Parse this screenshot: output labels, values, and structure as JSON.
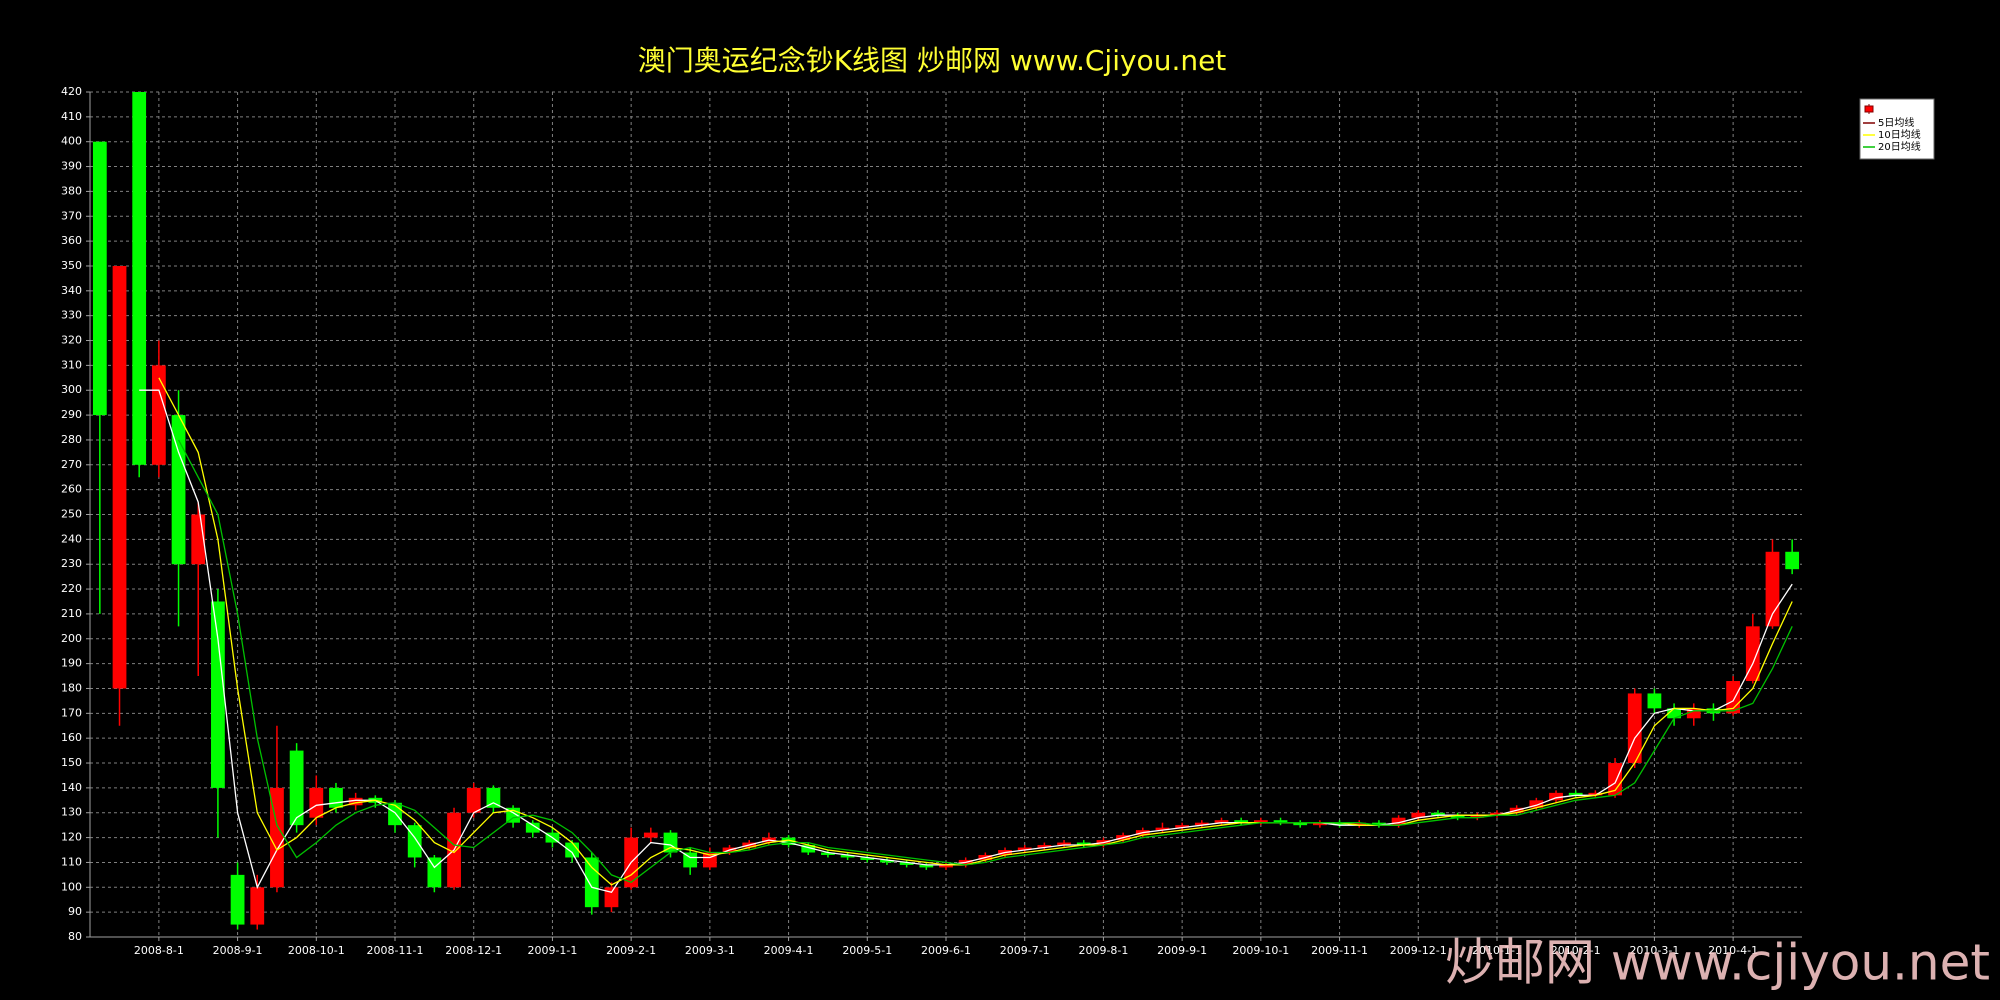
{
  "chart_data": {
    "type": "candlestick",
    "title": "澳门奥运纪念钞K线图  炒邮网 www.Cjiyou.net",
    "watermark": "炒邮网 www.cjiyou.net",
    "categories": [
      null,
      null,
      null,
      "2008-8-1",
      null,
      null,
      null,
      "2008-9-1",
      null,
      null,
      null,
      "2008-10-1",
      null,
      null,
      null,
      "2008-11-1",
      null,
      null,
      null,
      "2008-12-1",
      null,
      null,
      null,
      "2009-1-1",
      null,
      null,
      null,
      "2009-2-1",
      null,
      null,
      null,
      "2009-3-1",
      null,
      null,
      null,
      "2009-4-1",
      null,
      null,
      null,
      "2009-5-1",
      null,
      null,
      null,
      "2009-6-1",
      null,
      null,
      null,
      "2009-7-1",
      null,
      null,
      null,
      "2009-8-1",
      null,
      null,
      null,
      "2009-9-1",
      null,
      null,
      null,
      "2009-10-1",
      null,
      null,
      null,
      "2009-11-1",
      null,
      null,
      null,
      "2009-12-1",
      null,
      null,
      null,
      "2010-1-1",
      null,
      null,
      null,
      "2010-2-1",
      null,
      null,
      null,
      "2010-3-1",
      null,
      null,
      null,
      "2010-4-1",
      null,
      null,
      null
    ],
    "open": [
      400,
      180,
      420,
      270,
      290,
      230,
      215,
      105,
      85,
      100,
      155,
      128,
      140,
      133,
      136,
      134,
      125,
      112,
      100,
      130,
      140,
      132,
      126,
      122,
      118,
      112,
      92,
      100,
      120,
      122,
      114,
      108,
      114,
      116,
      118,
      120,
      117,
      114,
      113,
      112,
      111,
      110,
      109,
      108,
      109,
      111,
      113,
      115,
      116,
      117,
      118,
      117,
      119,
      121,
      123,
      124,
      125,
      126,
      127,
      126,
      127,
      126,
      125,
      126,
      125,
      126,
      125,
      128,
      130,
      129,
      128,
      129,
      130,
      132,
      135,
      138,
      137,
      137,
      150,
      178,
      172,
      168,
      172,
      170,
      183,
      205,
      235
    ],
    "high": [
      400,
      350,
      420,
      320,
      300,
      255,
      220,
      110,
      105,
      165,
      158,
      145,
      142,
      138,
      137,
      135,
      126,
      113,
      132,
      142,
      141,
      133,
      127,
      124,
      119,
      114,
      102,
      124,
      124,
      123,
      116,
      116,
      117,
      119,
      122,
      121,
      118,
      115,
      114,
      113,
      112,
      111,
      110,
      110,
      112,
      114,
      116,
      117,
      118,
      119,
      119,
      120,
      122,
      124,
      126,
      126,
      127,
      128,
      128,
      128,
      128,
      127,
      127,
      127,
      127,
      127,
      129,
      131,
      131,
      130,
      130,
      131,
      133,
      136,
      139,
      139,
      139,
      152,
      180,
      180,
      174,
      174,
      174,
      185,
      210,
      240,
      240
    ],
    "low": [
      210,
      165,
      265,
      265,
      205,
      185,
      120,
      83,
      83,
      98,
      122,
      125,
      130,
      131,
      132,
      122,
      108,
      98,
      99,
      128,
      130,
      124,
      120,
      116,
      110,
      89,
      90,
      99,
      118,
      112,
      105,
      107,
      113,
      115,
      117,
      116,
      113,
      112,
      111,
      110,
      109,
      108,
      107,
      107,
      108,
      110,
      112,
      114,
      115,
      116,
      116,
      116,
      118,
      120,
      122,
      123,
      124,
      125,
      125,
      125,
      125,
      124,
      124,
      124,
      124,
      124,
      124,
      127,
      128,
      127,
      127,
      128,
      129,
      131,
      134,
      136,
      136,
      136,
      148,
      170,
      165,
      165,
      167,
      169,
      182,
      204,
      226
    ],
    "close": [
      290,
      350,
      270,
      310,
      230,
      250,
      140,
      85,
      100,
      140,
      125,
      140,
      132,
      136,
      134,
      125,
      112,
      100,
      130,
      140,
      132,
      126,
      122,
      118,
      112,
      92,
      100,
      120,
      122,
      114,
      108,
      114,
      116,
      118,
      120,
      117,
      114,
      113,
      112,
      111,
      110,
      109,
      108,
      109,
      111,
      113,
      115,
      116,
      117,
      118,
      117,
      119,
      121,
      123,
      124,
      125,
      126,
      127,
      126,
      127,
      126,
      125,
      126,
      125,
      126,
      125,
      128,
      130,
      129,
      128,
      129,
      130,
      132,
      135,
      138,
      137,
      138,
      150,
      178,
      172,
      168,
      172,
      170,
      183,
      205,
      235,
      228
    ],
    "up_color": "#ff0000",
    "down_color": "#00ff00",
    "series": [
      {
        "name": "5日均线",
        "color": "#ffffff",
        "values": [
          null,
          null,
          300,
          300,
          275,
          255,
          200,
          130,
          100,
          115,
          128,
          133,
          134,
          135,
          135,
          130,
          120,
          108,
          115,
          130,
          134,
          130,
          125,
          120,
          114,
          100,
          98,
          110,
          118,
          117,
          112,
          112,
          115,
          117,
          119,
          118,
          116,
          114,
          113,
          112,
          111,
          110,
          109,
          109,
          110,
          112,
          114,
          115,
          116,
          117,
          117,
          118,
          120,
          122,
          123,
          124,
          125,
          126,
          126,
          126,
          126,
          126,
          126,
          125,
          125,
          125,
          126,
          128,
          129,
          129,
          129,
          129,
          131,
          133,
          136,
          137,
          137,
          142,
          160,
          170,
          172,
          171,
          171,
          175,
          190,
          210,
          222
        ]
      },
      {
        "name": "10日均线",
        "color": "#ffff00",
        "values": [
          null,
          null,
          null,
          305,
          290,
          275,
          240,
          180,
          130,
          115,
          120,
          128,
          132,
          134,
          135,
          133,
          127,
          118,
          114,
          122,
          130,
          131,
          128,
          124,
          118,
          108,
          101,
          105,
          112,
          116,
          115,
          113,
          114,
          116,
          118,
          119,
          117,
          115,
          114,
          113,
          112,
          111,
          110,
          109,
          109,
          111,
          113,
          114,
          115,
          116,
          117,
          117,
          119,
          121,
          122,
          123,
          124,
          125,
          126,
          126,
          126,
          126,
          126,
          126,
          125,
          125,
          125,
          127,
          128,
          129,
          129,
          129,
          130,
          132,
          134,
          136,
          137,
          139,
          150,
          165,
          172,
          172,
          171,
          172,
          180,
          198,
          215
        ]
      },
      {
        "name": "20日均线",
        "color": "#00c000",
        "values": [
          null,
          null,
          null,
          null,
          280,
          265,
          250,
          210,
          160,
          125,
          112,
          118,
          125,
          130,
          133,
          134,
          131,
          124,
          117,
          116,
          122,
          128,
          129,
          127,
          122,
          114,
          105,
          102,
          108,
          114,
          116,
          114,
          114,
          115,
          117,
          118,
          118,
          116,
          115,
          114,
          113,
          112,
          111,
          110,
          109,
          110,
          112,
          113,
          114,
          115,
          116,
          117,
          118,
          120,
          121,
          122,
          123,
          124,
          125,
          126,
          126,
          126,
          126,
          126,
          126,
          125,
          125,
          126,
          127,
          128,
          128,
          129,
          129,
          131,
          133,
          135,
          136,
          137,
          142,
          155,
          168,
          171,
          171,
          171,
          174,
          188,
          205
        ]
      }
    ],
    "ylim": [
      80,
      420
    ],
    "yticks": [
      80,
      90,
      100,
      110,
      120,
      130,
      140,
      150,
      160,
      170,
      180,
      190,
      200,
      210,
      220,
      230,
      240,
      250,
      260,
      270,
      280,
      290,
      300,
      310,
      320,
      330,
      340,
      350,
      360,
      370,
      380,
      390,
      400,
      410,
      420
    ],
    "grid": true,
    "legend": "top-right"
  }
}
